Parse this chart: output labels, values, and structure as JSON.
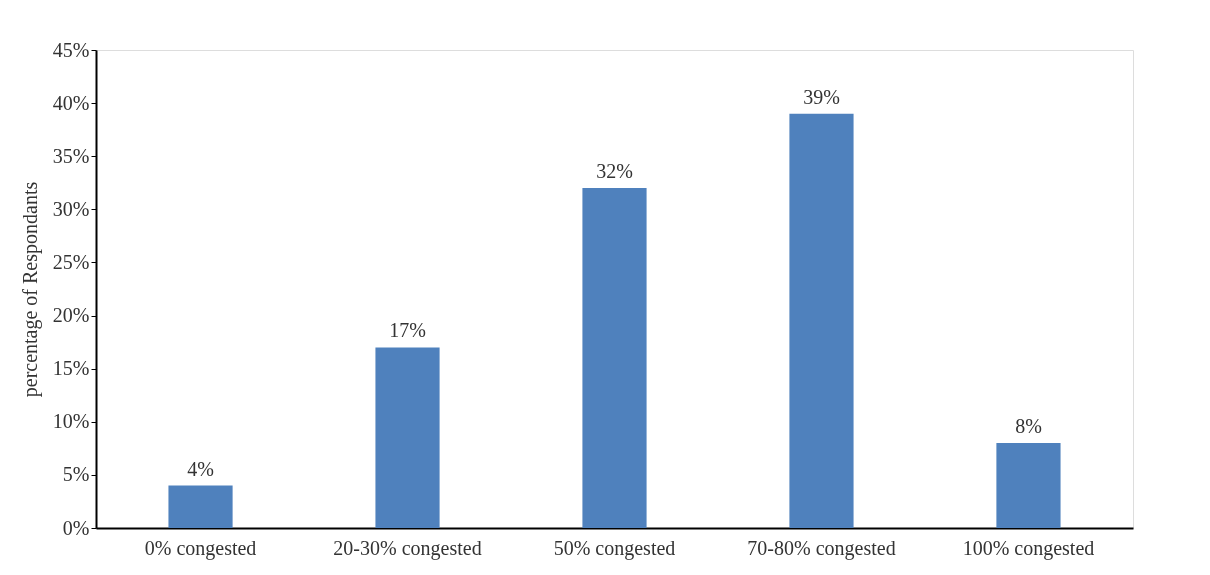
{
  "chart_data": {
    "type": "bar",
    "ylabel": "percentage of Respondants",
    "categories": [
      "0% congested",
      "20-30% congested",
      "50% congested",
      "70-80% congested",
      "100% congested"
    ],
    "values": [
      4,
      17,
      32,
      39,
      8
    ],
    "value_labels": [
      "4%",
      "17%",
      "32%",
      "39%",
      "8%"
    ],
    "color": "#4f81bd",
    "ylim": [
      0,
      45
    ],
    "yticks": [
      {
        "value": 0,
        "label": "0%"
      },
      {
        "value": 5,
        "label": "5%"
      },
      {
        "value": 10,
        "label": "10%"
      },
      {
        "value": 15,
        "label": "15%"
      },
      {
        "value": 20,
        "label": "20%"
      },
      {
        "value": 25,
        "label": "25%"
      },
      {
        "value": 30,
        "label": "30%"
      },
      {
        "value": 35,
        "label": "35%"
      },
      {
        "value": 40,
        "label": "40%"
      },
      {
        "value": 45,
        "label": "45%"
      }
    ],
    "grid": false
  }
}
